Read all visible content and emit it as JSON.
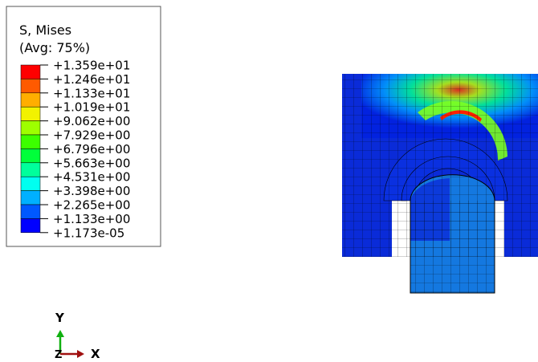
{
  "legend": {
    "title": "S, Mises",
    "subtitle": "(Avg: 75%)",
    "labels": [
      "+1.359e+01",
      "+1.246e+01",
      "+1.133e+01",
      "+1.019e+01",
      "+9.062e+00",
      "+7.929e+00",
      "+6.796e+00",
      "+5.663e+00",
      "+4.531e+00",
      "+3.398e+00",
      "+2.265e+00",
      "+1.133e+00",
      "+1.173e-05"
    ],
    "colors": [
      "#ff0000",
      "#ff5a00",
      "#ffae00",
      "#f2f200",
      "#9eff00",
      "#3cff00",
      "#00ff3a",
      "#00ff9b",
      "#00fff0",
      "#00b0ff",
      "#0058ff",
      "#0000ff"
    ]
  },
  "triad": {
    "y": "Y",
    "x": "X",
    "z": "Z"
  }
}
